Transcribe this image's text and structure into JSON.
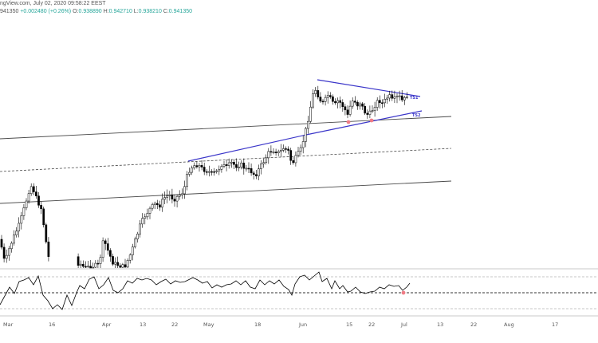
{
  "header": {
    "title": "ngView.com, July 02, 2020 09:58:22 EEST",
    "last_value": "941350",
    "change": "+0.002480 (+0.26%)",
    "o_label": "O:",
    "o_value": "0.938890",
    "h_label": "H:",
    "h_value": "0.942710",
    "l_label": "L:",
    "l_value": "0.938210",
    "c_label": "C:",
    "c_value": "0.941350"
  },
  "colors": {
    "background": "#ffffff",
    "candle": "#000000",
    "trendline": "#3a35c9",
    "channel_line": "#4a4a4a",
    "marker": "#f07c86",
    "rsi_line": "#000000",
    "accent_values": "#26a69a"
  },
  "annotations": [
    {
      "text": "TS1"
    },
    {
      "text": "TS2"
    }
  ],
  "chart_data": {
    "type": "candlestick",
    "x_axis_labels": [
      "Mar",
      "16",
      "Apr",
      "13",
      "22",
      "May",
      "18",
      "Jun",
      "15",
      "22",
      "Jul",
      "13",
      "22",
      "Aug",
      "17"
    ],
    "price_range": [
      0.89,
      0.965
    ],
    "candles": [],
    "rsi_panel": {
      "grid_levels": [
        70,
        50,
        30
      ]
    }
  }
}
